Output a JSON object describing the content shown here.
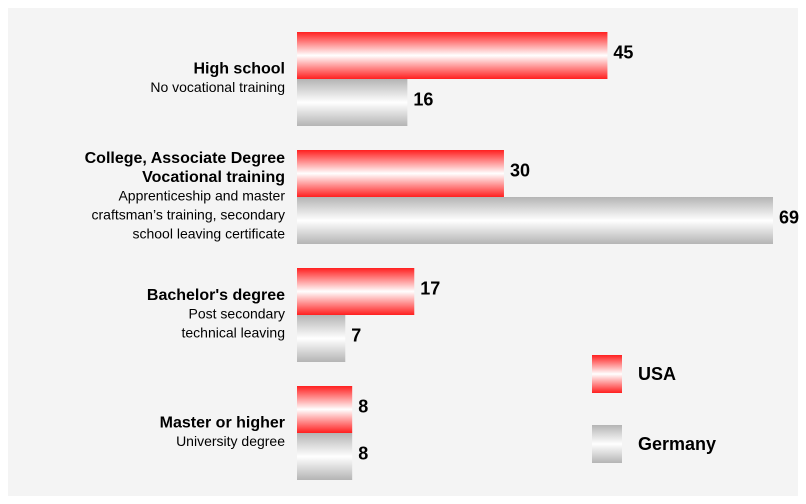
{
  "chart_data": {
    "type": "hbar",
    "categories": [
      {
        "title": [
          "High school"
        ],
        "note": [
          "No vocational training"
        ]
      },
      {
        "title": [
          "College, Associate Degree",
          "Vocational training"
        ],
        "note": [
          "Apprenticeship and master",
          "craftsman’s training, secondary",
          "school leaving certificate"
        ]
      },
      {
        "title": [
          "Bachelor's degree"
        ],
        "note": [
          "Post secondary",
          "technical leaving"
        ]
      },
      {
        "title": [
          "Master or higher"
        ],
        "note": [
          "University degree"
        ]
      }
    ],
    "series": [
      {
        "name": "USA",
        "color": "#ff1f1f",
        "values": [
          45,
          30,
          17,
          8
        ]
      },
      {
        "name": "Germany",
        "color": "#b4b4b4",
        "values": [
          16,
          69,
          7,
          8
        ]
      }
    ],
    "xlim": [
      0,
      69
    ],
    "legend": "bottom-right"
  }
}
